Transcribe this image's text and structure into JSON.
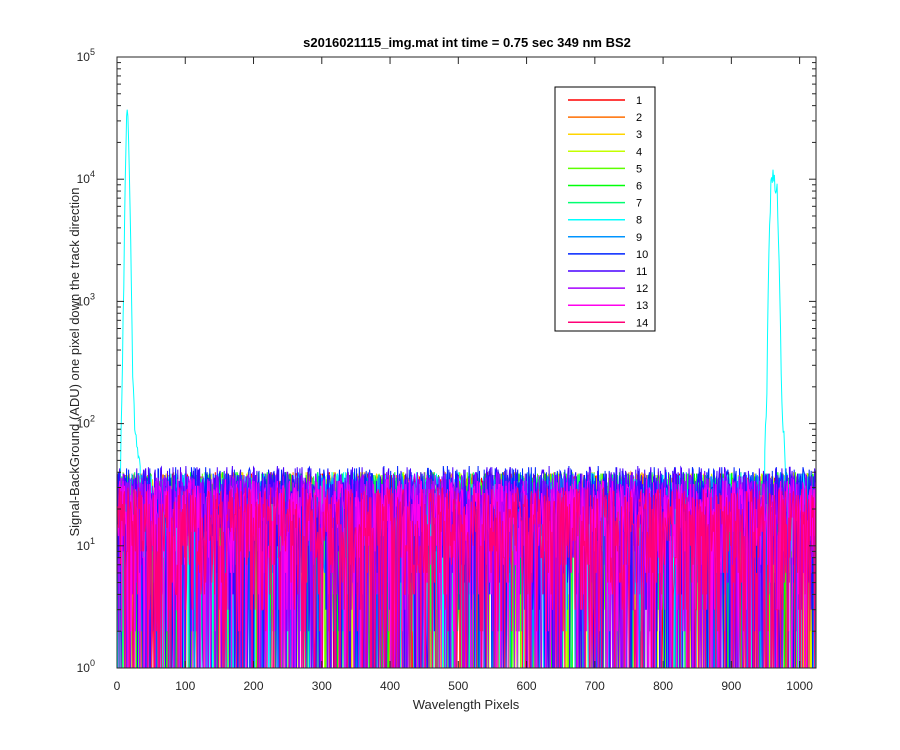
{
  "chart_data": {
    "type": "line",
    "title": "s2016021115_img.mat int time = 0.75 sec  349 nm BS2",
    "xlabel": "Wavelength Pixels",
    "ylabel": "Signal-BackGround (ADU) one pixel down the track direction",
    "xlim": [
      0,
      1024
    ],
    "ylim": [
      1,
      100000
    ],
    "yscale": "log",
    "x_ticks": [
      0,
      100,
      200,
      300,
      400,
      500,
      600,
      700,
      800,
      900,
      1000
    ],
    "x_tick_labels": [
      "0",
      "100",
      "200",
      "300",
      "400",
      "500",
      "600",
      "700",
      "800",
      "900",
      "1000"
    ],
    "y_ticks": [
      1,
      10,
      100,
      1000,
      10000,
      100000
    ],
    "y_tick_labels": [
      {
        "base": "10",
        "exp": "0"
      },
      {
        "base": "10",
        "exp": "1"
      },
      {
        "base": "10",
        "exp": "2"
      },
      {
        "base": "10",
        "exp": "3"
      },
      {
        "base": "10",
        "exp": "4"
      },
      {
        "base": "10",
        "exp": "5"
      }
    ],
    "grid": false,
    "legend_position": "top-right",
    "noise_floor_typical": [
      2,
      40
    ],
    "series": [
      {
        "name": "1",
        "color": "#ff0000",
        "noise_range": [
          1,
          40
        ]
      },
      {
        "name": "2",
        "color": "#ff6e00",
        "noise_range": [
          1,
          40
        ]
      },
      {
        "name": "3",
        "color": "#ffd500",
        "noise_range": [
          1,
          40
        ]
      },
      {
        "name": "4",
        "color": "#c4ff00",
        "noise_range": [
          1,
          40
        ]
      },
      {
        "name": "5",
        "color": "#5dff00",
        "noise_range": [
          1,
          40
        ]
      },
      {
        "name": "6",
        "color": "#00ff09",
        "noise_range": [
          1,
          40
        ]
      },
      {
        "name": "7",
        "color": "#00ff70",
        "noise_range": [
          1,
          40
        ]
      },
      {
        "name": "8",
        "color": "#00ffff",
        "noise_range": [
          1,
          40
        ],
        "peaks": [
          {
            "x": [
              5,
              10,
              13,
              15,
              17,
              20,
              23,
              26,
              30,
              35
            ],
            "y": [
              40,
              1500,
              20000,
              41000,
              20000,
              3000,
              250,
              90,
              60,
              40
            ]
          },
          {
            "x": [
              948,
              952,
              955,
              958,
              961,
              964,
              967,
              970,
              974,
              980
            ],
            "y": [
              40,
              200,
              2500,
              9000,
              12000,
              9000,
              8000,
              2000,
              150,
              40
            ]
          }
        ]
      },
      {
        "name": "9",
        "color": "#0094ff",
        "noise_range": [
          1,
          40
        ]
      },
      {
        "name": "10",
        "color": "#0024ff",
        "noise_range": [
          1,
          45
        ]
      },
      {
        "name": "11",
        "color": "#4800ff",
        "noise_range": [
          1,
          45
        ]
      },
      {
        "name": "12",
        "color": "#a600ff",
        "noise_range": [
          1,
          40
        ]
      },
      {
        "name": "13",
        "color": "#ff00ee",
        "noise_range": [
          1,
          35
        ]
      },
      {
        "name": "14",
        "color": "#ff0077",
        "noise_range": [
          1,
          30
        ]
      }
    ]
  }
}
